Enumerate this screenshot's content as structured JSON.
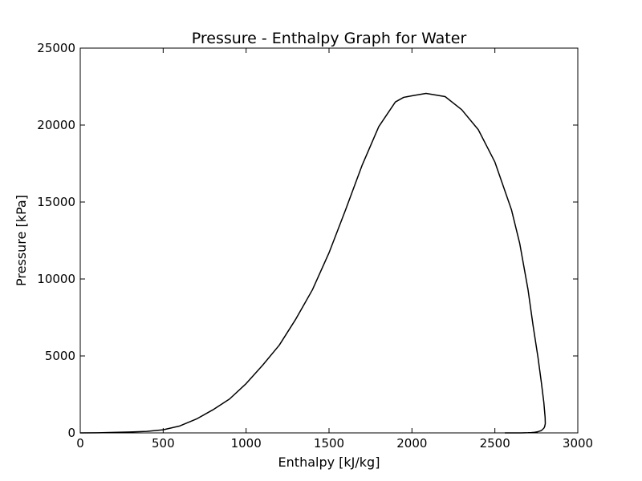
{
  "chart_data": {
    "type": "line",
    "title": "Pressure - Enthalpy Graph for Water",
    "xlabel": "Enthalpy [kJ/kg]",
    "ylabel": "Pressure [kPa]",
    "xlim": [
      0,
      3000
    ],
    "ylim": [
      0,
      25000
    ],
    "xticks": [
      0,
      500,
      1000,
      1500,
      2000,
      2500,
      3000
    ],
    "yticks": [
      0,
      5000,
      10000,
      15000,
      20000,
      25000
    ],
    "grid": false,
    "line_color": "#000000",
    "series": [
      {
        "x": [
          0,
          100,
          200,
          300,
          400,
          500,
          600,
          700,
          800,
          900,
          1000,
          1100,
          1200,
          1300,
          1400,
          1500,
          1600,
          1700,
          1800,
          1900,
          1950,
          2000,
          2085,
          2200,
          2300,
          2400,
          2500,
          2600,
          2650,
          2700,
          2730,
          2760,
          2780,
          2795,
          2803,
          2804,
          2800,
          2795,
          2780,
          2760,
          2740,
          2720,
          2700,
          2680,
          2660,
          2640,
          2620,
          2600,
          2560
        ],
        "y": [
          0,
          5,
          30,
          60,
          100,
          200,
          450,
          900,
          1500,
          2200,
          3200,
          4400,
          5700,
          7400,
          9300,
          11700,
          14500,
          17400,
          19900,
          21500,
          21800,
          21900,
          22060,
          21850,
          21000,
          19700,
          17600,
          14500,
          12300,
          9300,
          7000,
          4900,
          3300,
          2000,
          1000,
          600,
          400,
          300,
          150,
          80,
          40,
          20,
          10,
          5,
          2,
          1,
          0,
          0,
          0
        ]
      }
    ]
  }
}
